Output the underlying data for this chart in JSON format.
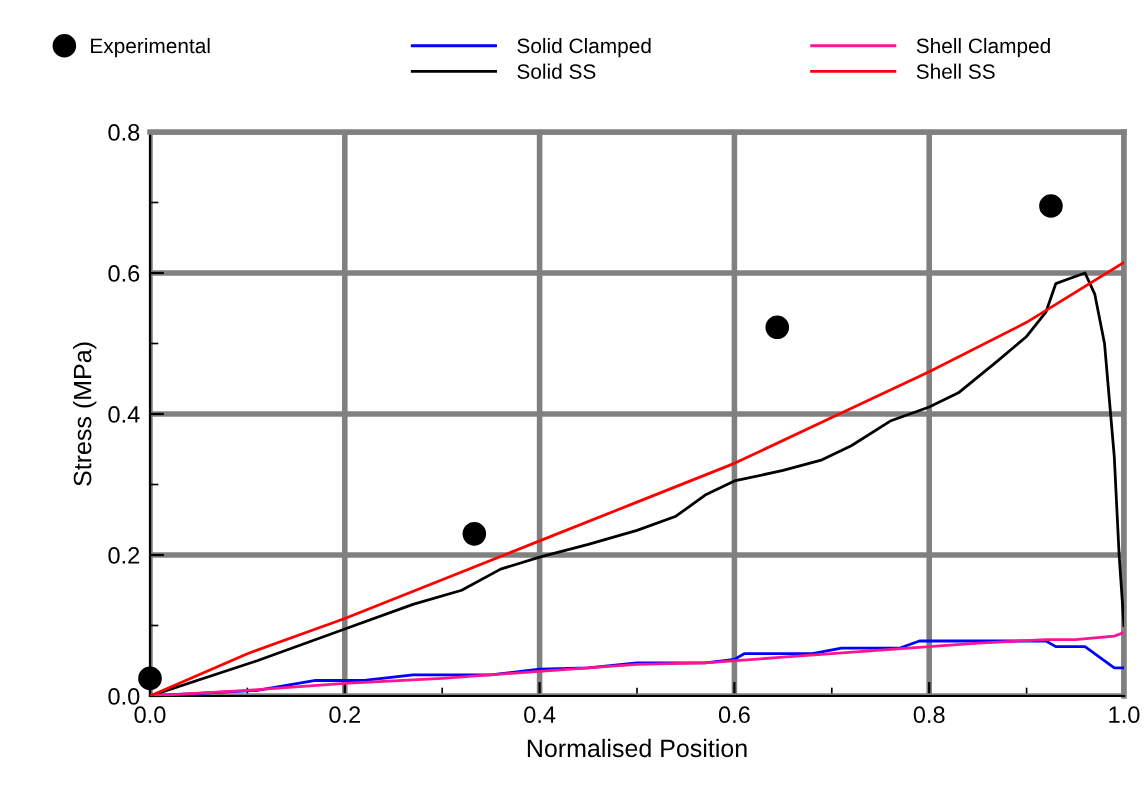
{
  "chart_data": {
    "type": "line",
    "xlabel": "Normalised Position",
    "ylabel": "Stress (MPa)",
    "xlim": [
      0,
      1
    ],
    "ylim": [
      0,
      0.8
    ],
    "xticks": [
      {
        "value": 0,
        "label": "0.0"
      },
      0.2,
      0.4,
      0.6,
      0.8,
      {
        "value": 1,
        "label": "1.0"
      }
    ],
    "yticks": [
      {
        "value": 0,
        "label": "0.0"
      },
      0.2,
      0.4,
      0.6,
      0.8
    ],
    "grid": true,
    "legend": "top",
    "series": [
      {
        "name": "Experimental",
        "type": "scatter",
        "marker": "circle",
        "color": "#000000",
        "x": [
          0,
          0.333,
          0.644,
          0.925
        ],
        "values": [
          0.025,
          0.23,
          0.523,
          0.695
        ]
      },
      {
        "name": "Solid Clamped",
        "color": "#0000ff",
        "x": [
          0,
          0.11,
          0.17,
          0.22,
          0.27,
          0.35,
          0.4,
          0.45,
          0.5,
          0.57,
          0.6,
          0.61,
          0.68,
          0.71,
          0.77,
          0.79,
          0.92,
          0.93,
          0.96,
          0.99,
          1.0
        ],
        "values": [
          0,
          0.008,
          0.022,
          0.022,
          0.03,
          0.03,
          0.038,
          0.04,
          0.047,
          0.047,
          0.052,
          0.06,
          0.06,
          0.068,
          0.068,
          0.078,
          0.078,
          0.07,
          0.07,
          0.04,
          0.04
        ]
      },
      {
        "name": "Solid SS",
        "color": "#000000",
        "x": [
          0,
          0.11,
          0.2,
          0.27,
          0.32,
          0.36,
          0.4,
          0.45,
          0.5,
          0.54,
          0.57,
          0.6,
          0.65,
          0.69,
          0.72,
          0.76,
          0.8,
          0.83,
          0.87,
          0.9,
          0.92,
          0.93,
          0.94,
          0.96,
          0.97,
          0.98,
          0.99,
          0.995,
          1.0
        ],
        "values": [
          0,
          0.05,
          0.095,
          0.13,
          0.15,
          0.18,
          0.197,
          0.215,
          0.235,
          0.255,
          0.285,
          0.305,
          0.32,
          0.335,
          0.355,
          0.39,
          0.41,
          0.43,
          0.475,
          0.51,
          0.545,
          0.585,
          0.59,
          0.6,
          0.57,
          0.5,
          0.34,
          0.2,
          0.1
        ]
      },
      {
        "name": "Shell Clamped",
        "color": "#ff1493",
        "x": [
          0,
          0.1,
          0.2,
          0.3,
          0.4,
          0.5,
          0.57,
          0.65,
          0.75,
          0.8,
          0.85,
          0.92,
          0.95,
          0.99,
          1.0
        ],
        "values": [
          0,
          0.008,
          0.018,
          0.025,
          0.035,
          0.045,
          0.047,
          0.055,
          0.065,
          0.07,
          0.075,
          0.08,
          0.08,
          0.085,
          0.09
        ]
      },
      {
        "name": "Shell SS",
        "color": "#ff0000",
        "x": [
          0,
          0.1,
          0.2,
          0.3,
          0.4,
          0.5,
          0.6,
          0.7,
          0.8,
          0.9,
          1.0
        ],
        "values": [
          0,
          0.06,
          0.11,
          0.165,
          0.22,
          0.275,
          0.33,
          0.395,
          0.46,
          0.53,
          0.615
        ]
      }
    ]
  }
}
